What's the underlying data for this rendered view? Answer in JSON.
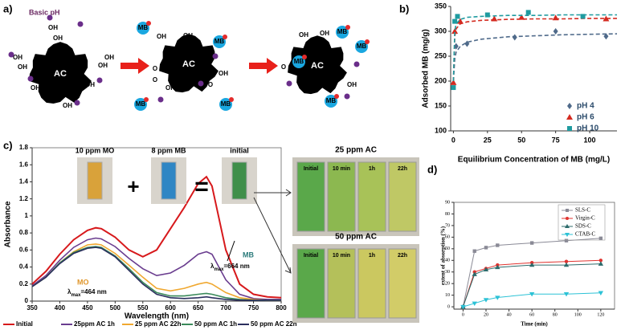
{
  "diagram_a": {
    "label": "a)",
    "note": "Basic pH",
    "adsorbent": "AC",
    "hydroxyl": "OH",
    "oxide": "O",
    "dye": "MB"
  },
  "chart_data": [
    {
      "type": "scatter",
      "label": "b)",
      "xlabel": "Equilibrium Concentration of MB (mg/L)",
      "ylabel": "Adsorbed MB (mg/g)",
      "xlim": [
        -2,
        120
      ],
      "ylim": [
        100,
        350
      ],
      "xticks": [
        0,
        25,
        50,
        75,
        100
      ],
      "yticks": [
        100,
        150,
        200,
        250,
        300,
        350
      ],
      "legend": "lower right",
      "series": [
        {
          "name": "pH 4",
          "color": "#4f6a8a",
          "marker": "diamond",
          "x": [
            2,
            10,
            45,
            75,
            112
          ],
          "values": [
            270,
            275,
            288,
            300,
            290
          ],
          "fit": {
            "x": [
              0,
              1,
              2,
              5,
              10,
              20,
              40,
              60,
              80,
              100,
              120
            ],
            "values": [
              200,
              245,
              258,
              270,
              278,
              284,
              289,
              291,
              293,
              294,
              295
            ]
          }
        },
        {
          "name": "pH 6",
          "color": "#d42a20",
          "marker": "triangle",
          "x": [
            0,
            1,
            5,
            30,
            50,
            75,
            112
          ],
          "values": [
            197,
            300,
            320,
            325,
            328,
            327,
            325
          ],
          "fit": {
            "x": [
              0,
              1,
              2,
              5,
              10,
              20,
              40,
              60,
              80,
              100,
              120
            ],
            "values": [
              200,
              290,
              305,
              315,
              319,
              322,
              324,
              325,
              325,
              326,
              326
            ]
          }
        },
        {
          "name": "pH 10",
          "color": "#1f9ba0",
          "marker": "square",
          "x": [
            0,
            1,
            3,
            25,
            55,
            95
          ],
          "values": [
            187,
            320,
            330,
            333,
            338,
            330
          ],
          "fit": {
            "x": [
              0,
              1,
              2,
              5,
              10,
              20,
              40,
              60,
              80,
              100,
              120
            ],
            "values": [
              200,
              300,
              315,
              324,
              328,
              330,
              332,
              332,
              333,
              333,
              333
            ]
          }
        }
      ]
    },
    {
      "type": "line",
      "label": "c)",
      "xlabel": "Wavelength (nm)",
      "ylabel": "Absorbance",
      "xlim": [
        350,
        800
      ],
      "ylim": [
        0,
        1.8
      ],
      "xticks": [
        350,
        400,
        450,
        500,
        550,
        600,
        650,
        700,
        750,
        800
      ],
      "yticks": [
        0,
        0.2,
        0.4,
        0.6,
        0.8,
        1,
        1.2,
        1.4,
        1.6,
        1.8
      ],
      "legend": "bottom",
      "x": [
        350,
        375,
        400,
        425,
        450,
        465,
        475,
        500,
        525,
        550,
        575,
        600,
        625,
        650,
        665,
        675,
        700,
        725,
        750,
        775,
        800
      ],
      "series": [
        {
          "name": "Initial",
          "color": "#d7191c",
          "values": [
            0.2,
            0.35,
            0.55,
            0.72,
            0.83,
            0.86,
            0.85,
            0.75,
            0.6,
            0.52,
            0.6,
            0.85,
            1.1,
            1.38,
            1.46,
            1.35,
            0.6,
            0.2,
            0.08,
            0.05,
            0.04
          ]
        },
        {
          "name": "25ppm AC 1h",
          "color": "#6a3d8f",
          "values": [
            0.18,
            0.3,
            0.48,
            0.63,
            0.72,
            0.74,
            0.73,
            0.64,
            0.5,
            0.38,
            0.3,
            0.33,
            0.42,
            0.55,
            0.58,
            0.55,
            0.25,
            0.08,
            0.03,
            0.02,
            0.02
          ]
        },
        {
          "name": "25 ppm AC 22h",
          "color": "#f0a830",
          "values": [
            0.17,
            0.28,
            0.45,
            0.58,
            0.66,
            0.67,
            0.66,
            0.56,
            0.42,
            0.28,
            0.15,
            0.12,
            0.15,
            0.2,
            0.22,
            0.2,
            0.1,
            0.04,
            0.02,
            0.01,
            0.01
          ]
        },
        {
          "name": "50 ppm AC 1h",
          "color": "#3a8a5a",
          "values": [
            0.17,
            0.28,
            0.45,
            0.57,
            0.63,
            0.64,
            0.63,
            0.53,
            0.38,
            0.22,
            0.1,
            0.06,
            0.06,
            0.08,
            0.09,
            0.08,
            0.04,
            0.02,
            0.01,
            0.01,
            0.01
          ]
        },
        {
          "name": "50 ppm AC 22h",
          "color": "#2b2f5e",
          "values": [
            0.17,
            0.28,
            0.44,
            0.56,
            0.62,
            0.63,
            0.62,
            0.52,
            0.36,
            0.2,
            0.08,
            0.04,
            0.03,
            0.04,
            0.05,
            0.04,
            0.02,
            0.01,
            0.01,
            0.01,
            0.01
          ]
        }
      ],
      "annotations": {
        "mb": "MB",
        "mb_lambda": {
          "symbol": "λ",
          "sub": "max",
          "text": "=664 nm"
        },
        "mo": "MO",
        "mo_lambda": {
          "symbol": "λ",
          "sub": "max",
          "text": "=464 nm"
        }
      },
      "photos": {
        "mo": "10 ppm MO",
        "mb": "8 ppm MB",
        "initial": "initial",
        "plus": "+",
        "equals": "=",
        "panel_25": "25 ppm AC",
        "panel_50": "50 ppm AC",
        "times": [
          "Initial",
          "10 min",
          "1h",
          "22h"
        ]
      }
    },
    {
      "type": "line",
      "label": "d)",
      "xlabel": "Time (min)",
      "ylabel": "extent of absorption (%)",
      "xlim": [
        -8,
        132
      ],
      "ylim": [
        -2,
        90
      ],
      "xticks": [
        0,
        20,
        40,
        60,
        80,
        100,
        120
      ],
      "yticks": [
        0,
        10,
        20,
        30,
        40,
        50,
        60,
        70,
        80,
        90
      ],
      "legend": "upper right",
      "x": [
        0,
        10,
        20,
        30,
        60,
        90,
        120
      ],
      "series": [
        {
          "name": "SLS-C",
          "color": "#8a8a96",
          "marker": "square",
          "values": [
            0,
            48,
            51,
            53,
            55,
            57,
            59
          ]
        },
        {
          "name": "Virgin-C",
          "color": "#e0332f",
          "marker": "circle",
          "values": [
            0,
            30,
            33,
            36,
            38,
            39,
            40
          ]
        },
        {
          "name": "SDS-C",
          "color": "#2c6b6b",
          "marker": "triangle",
          "values": [
            0,
            28,
            32,
            34,
            36,
            36,
            37
          ]
        },
        {
          "name": "CTAB-C",
          "color": "#2cc2d6",
          "marker": "down",
          "values": [
            0,
            3,
            6,
            8,
            11,
            11,
            12
          ]
        }
      ]
    }
  ]
}
